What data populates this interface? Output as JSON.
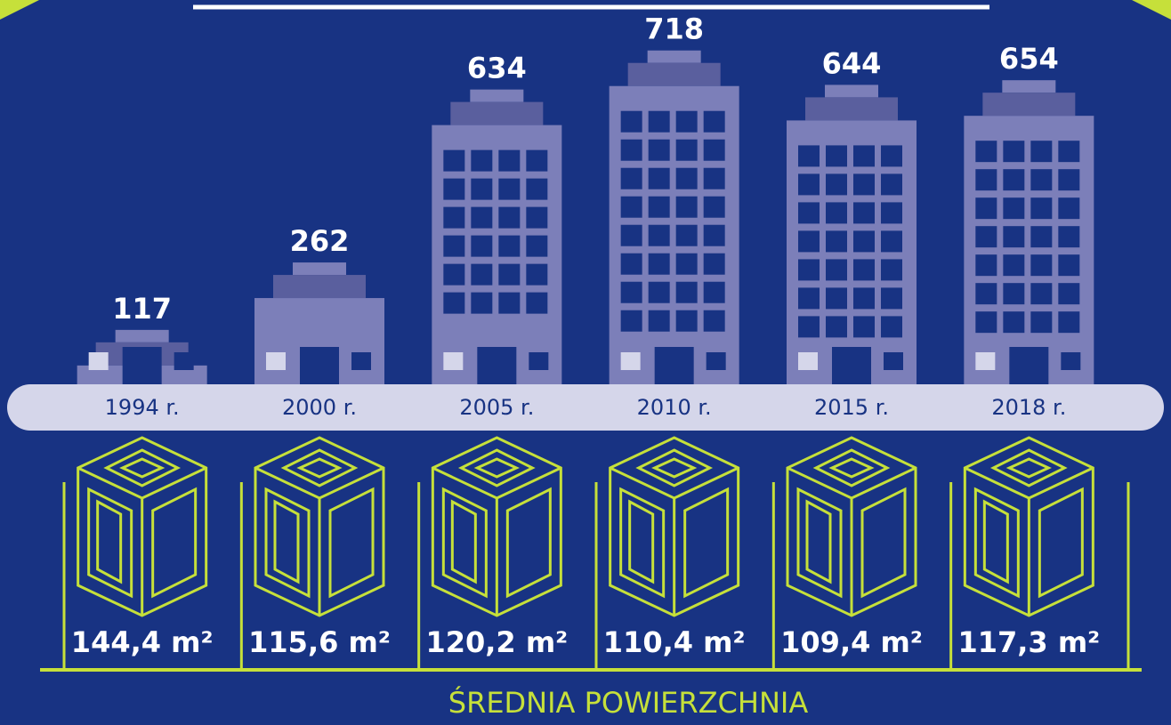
{
  "chart_data": [
    {
      "type": "bar",
      "categories": [
        "1994 r.",
        "2000 r.",
        "2005 r.",
        "2010 r.",
        "2015 r.",
        "2018 r."
      ],
      "values": [
        117,
        262,
        634,
        718,
        644,
        654
      ],
      "ylim": [
        0,
        750
      ],
      "color": "#7c7fb9"
    },
    {
      "type": "pictogram",
      "title": "ŚREDNIA POWIERZCHNIA",
      "values": [
        144.4,
        115.6,
        120.2,
        110.4,
        109.4,
        117.3
      ],
      "value_labels": [
        "144,4 m²",
        "115,6 m²",
        "120,2 m²",
        "110,4 m²",
        "109,4 m²",
        "117,3 m²"
      ],
      "color": "#c6e03a"
    }
  ]
}
